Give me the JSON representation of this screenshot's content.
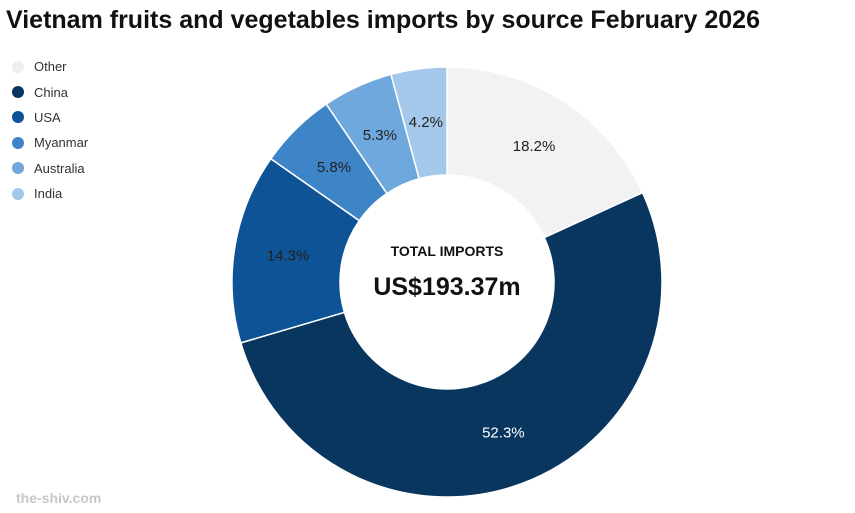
{
  "title": "Vietnam fruits and vegetables imports by source February 2026",
  "center": {
    "label": "TOTAL IMPORTS",
    "value": "US$193.37m"
  },
  "watermark": "the-shiv.com",
  "chart_data": {
    "type": "pie",
    "title": "Vietnam fruits and vegetables imports by source February 2026",
    "total_label": "TOTAL IMPORTS",
    "total_value": "US$193.37m",
    "legend_position": "top-left",
    "slices": [
      {
        "name": "Other",
        "value": 18.2,
        "label": "18.2%",
        "color": "#f2f2f2",
        "label_color": "#222222"
      },
      {
        "name": "China",
        "value": 52.3,
        "label": "52.3%",
        "color": "#08365f",
        "label_color": "#ffffff"
      },
      {
        "name": "USA",
        "value": 14.3,
        "label": "14.3%",
        "color": "#0d5396",
        "label_color": "#222222"
      },
      {
        "name": "Myanmar",
        "value": 5.8,
        "label": "5.8%",
        "color": "#3e85c8",
        "label_color": "#222222"
      },
      {
        "name": "Australia",
        "value": 5.3,
        "label": "5.3%",
        "color": "#6fa8dc",
        "label_color": "#222222"
      },
      {
        "name": "India",
        "value": 4.2,
        "label": "4.2%",
        "color": "#a4c8ea",
        "label_color": "#222222"
      }
    ]
  }
}
